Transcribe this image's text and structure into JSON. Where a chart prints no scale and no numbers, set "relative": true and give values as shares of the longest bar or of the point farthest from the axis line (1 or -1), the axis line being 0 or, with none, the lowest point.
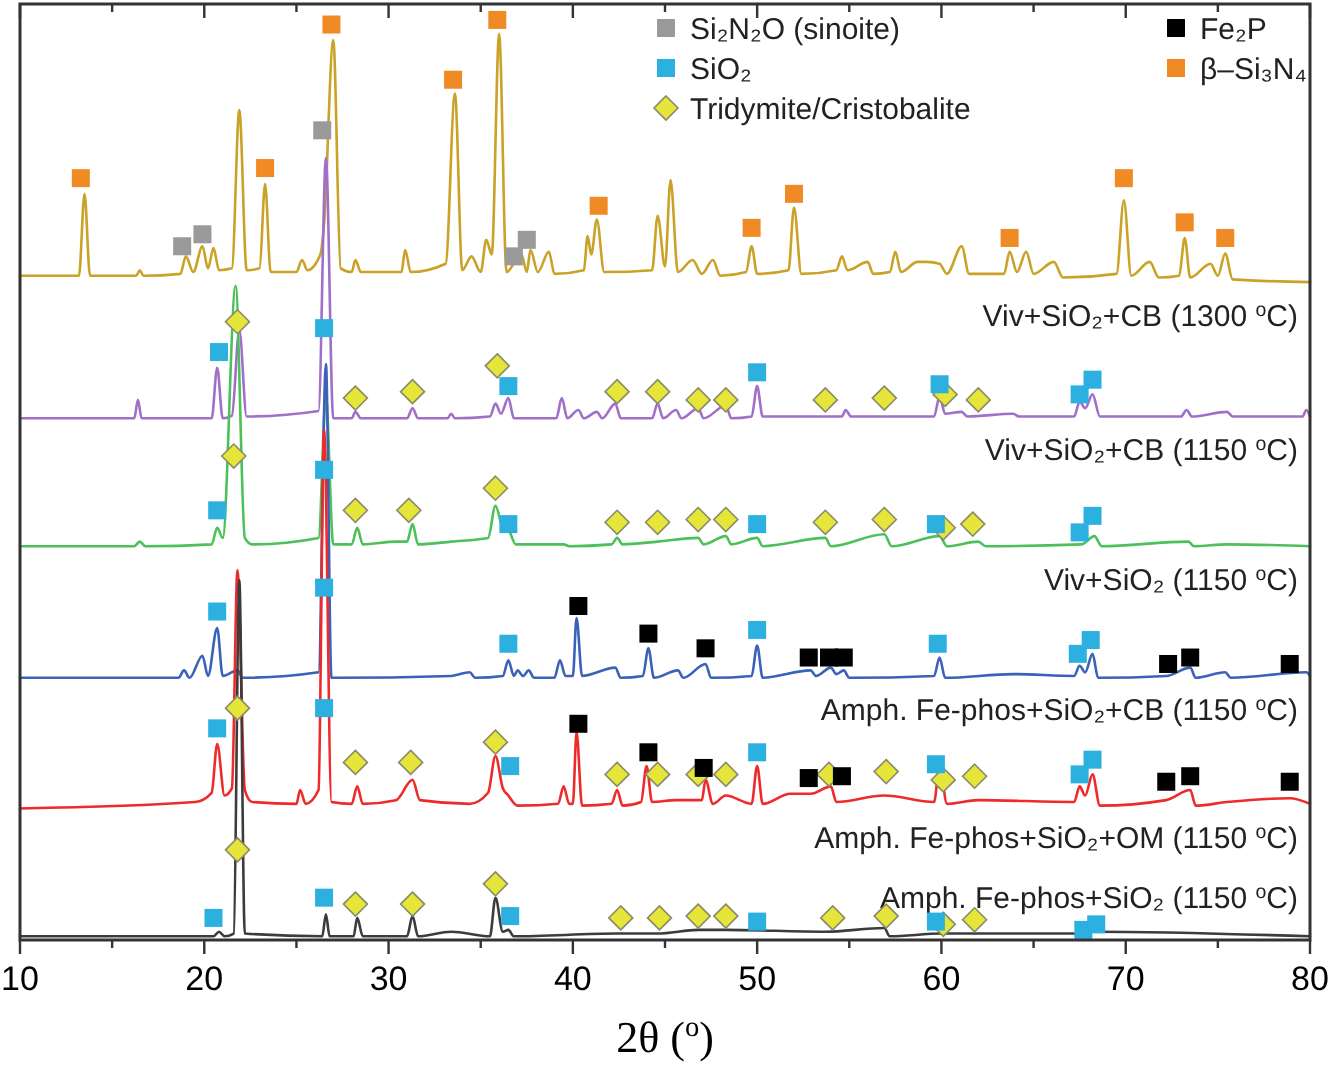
{
  "chart_data": {
    "type": "line",
    "relative": true,
    "xlabel": "2θ ($^{o}$)",
    "xlim": [
      10,
      80
    ],
    "xticks": [
      10,
      {
        "value": 15,
        "label": null
      },
      20,
      {
        "value": 25,
        "label": null
      },
      30,
      {
        "value": 35,
        "label": null
      },
      40,
      {
        "value": 45,
        "label": null
      },
      50,
      {
        "value": 55,
        "label": null
      },
      60,
      {
        "value": 65,
        "label": null
      },
      70,
      {
        "value": 75,
        "label": null
      },
      80
    ],
    "legend": "top right",
    "series": [
      {
        "name": "Viv+SiO₂+CB (1300 $^{o}$C)",
        "color": "#c9a227",
        "x": [
          10,
          13.2,
          13.5,
          13.8,
          16.3,
          16.5,
          16.7,
          18.7,
          19.0,
          19.4,
          19.9,
          20.2,
          20.5,
          20.8,
          21.5,
          21.9,
          22.3,
          23.0,
          23.3,
          23.6,
          25.0,
          25.3,
          25.6,
          26.3,
          26.5,
          27.0,
          27.4,
          28.0,
          28.2,
          28.5,
          30.7,
          30.9,
          31.2,
          33.1,
          33.6,
          34.0,
          34.5,
          35.0,
          35.3,
          35.6,
          36.0,
          36.4,
          37.2,
          37.5,
          37.7,
          38.1,
          38.7,
          39.0,
          40.6,
          40.8,
          41.0,
          41.3,
          41.7,
          44.3,
          44.6,
          45.0,
          45.3,
          45.7,
          46.5,
          47.0,
          47.6,
          48.0,
          49.4,
          49.7,
          50.0,
          51.7,
          52.0,
          52.4,
          54.3,
          54.6,
          54.9,
          56.0,
          56.3,
          57.2,
          57.5,
          57.8,
          58.7,
          59.2,
          59.9,
          60.3,
          61.1,
          61.5,
          63.4,
          63.7,
          64.1,
          64.6,
          65.0,
          66.1,
          66.6,
          69.5,
          69.9,
          70.3,
          71.3,
          71.8,
          72.9,
          73.2,
          73.5,
          74.6,
          75.0,
          75.4,
          75.8,
          80
        ],
        "values": [
          0.722,
          0.722,
          0.811,
          0.722,
          0.722,
          0.728,
          0.722,
          0.724,
          0.743,
          0.726,
          0.754,
          0.73,
          0.752,
          0.728,
          0.73,
          0.902,
          0.728,
          0.73,
          0.822,
          0.726,
          0.726,
          0.739,
          0.728,
          0.745,
          0.778,
          0.978,
          0.73,
          0.726,
          0.739,
          0.726,
          0.726,
          0.75,
          0.726,
          0.735,
          0.92,
          0.728,
          0.743,
          0.726,
          0.761,
          0.745,
          0.985,
          0.726,
          0.746,
          0.726,
          0.75,
          0.726,
          0.748,
          0.724,
          0.728,
          0.765,
          0.745,
          0.783,
          0.726,
          0.728,
          0.787,
          0.732,
          0.826,
          0.726,
          0.739,
          0.724,
          0.739,
          0.722,
          0.726,
          0.754,
          0.724,
          0.728,
          0.796,
          0.724,
          0.728,
          0.743,
          0.728,
          0.737,
          0.724,
          0.726,
          0.748,
          0.726,
          0.737,
          0.737,
          0.735,
          0.724,
          0.754,
          0.724,
          0.724,
          0.748,
          0.726,
          0.748,
          0.724,
          0.737,
          0.72,
          0.724,
          0.804,
          0.722,
          0.737,
          0.72,
          0.722,
          0.763,
          0.72,
          0.735,
          0.722,
          0.746,
          0.718,
          0.715
        ]
      },
      {
        "name": "Viv+SiO₂+CB (1150 $^{o}$C)",
        "color": "#a070c8",
        "x": [
          10,
          16.2,
          16.4,
          16.6,
          20.4,
          20.7,
          21.0,
          21.5,
          21.9,
          22.3,
          26.2,
          26.6,
          27.0,
          28.0,
          28.2,
          28.5,
          31.0,
          31.3,
          31.6,
          33.2,
          33.4,
          33.6,
          35.5,
          35.8,
          36.1,
          36.5,
          36.8,
          39.1,
          39.4,
          39.7,
          40.3,
          40.6,
          41.3,
          41.6,
          42.3,
          42.6,
          44.3,
          44.6,
          44.9,
          45.6,
          45.9,
          46.8,
          47.1,
          48.3,
          48.6,
          49.7,
          50.0,
          50.3,
          54.6,
          54.8,
          55.1,
          59.6,
          59.9,
          60.2,
          61.1,
          61.4,
          63.9,
          64.2,
          67.2,
          67.5,
          67.8,
          68.2,
          68.6,
          73.0,
          73.3,
          73.6,
          75.5,
          75.8,
          79.6,
          79.8,
          80
        ],
        "values": [
          0.567,
          0.567,
          0.587,
          0.567,
          0.567,
          0.622,
          0.567,
          0.57,
          0.663,
          0.569,
          0.575,
          0.85,
          0.567,
          0.567,
          0.574,
          0.567,
          0.567,
          0.578,
          0.567,
          0.567,
          0.572,
          0.567,
          0.569,
          0.583,
          0.572,
          0.589,
          0.567,
          0.567,
          0.589,
          0.567,
          0.576,
          0.567,
          0.574,
          0.567,
          0.583,
          0.567,
          0.567,
          0.583,
          0.567,
          0.576,
          0.567,
          0.578,
          0.567,
          0.581,
          0.567,
          0.569,
          0.602,
          0.569,
          0.569,
          0.576,
          0.569,
          0.569,
          0.591,
          0.572,
          0.574,
          0.569,
          0.572,
          0.569,
          0.569,
          0.585,
          0.578,
          0.593,
          0.569,
          0.569,
          0.576,
          0.569,
          0.574,
          0.569,
          0.569,
          0.576,
          0.569
        ]
      },
      {
        "name": "Viv+SiO₂ (1150 $^{o}$C)",
        "color": "#4cc05a",
        "x": [
          10,
          16.2,
          16.5,
          16.8,
          20.4,
          20.7,
          21.0,
          21.7,
          22.2,
          22.6,
          26.2,
          26.6,
          27.0,
          28.0,
          28.3,
          28.6,
          30.4,
          31.0,
          31.3,
          31.6,
          33.4,
          35.4,
          35.8,
          36.2,
          36.5,
          36.9,
          39.5,
          39.8,
          42.1,
          42.4,
          42.7,
          44.6,
          46.8,
          47.1,
          48.3,
          48.6,
          50.0,
          50.3,
          53.7,
          54.0,
          56.9,
          57.3,
          59.9,
          60.3,
          62.0,
          62.4,
          67.6,
          68.3,
          68.7,
          73.4,
          73.7,
          75.5,
          80
        ],
        "values": [
          0.428,
          0.428,
          0.433,
          0.428,
          0.43,
          0.448,
          0.437,
          0.711,
          0.437,
          0.43,
          0.437,
          0.591,
          0.43,
          0.43,
          0.448,
          0.43,
          0.433,
          0.433,
          0.452,
          0.43,
          0.433,
          0.437,
          0.472,
          0.448,
          0.446,
          0.43,
          0.43,
          0.428,
          0.43,
          0.437,
          0.43,
          0.433,
          0.437,
          0.43,
          0.439,
          0.43,
          0.437,
          0.428,
          0.437,
          0.428,
          0.441,
          0.428,
          0.439,
          0.428,
          0.433,
          0.428,
          0.43,
          0.439,
          0.428,
          0.433,
          0.428,
          0.43,
          0.428
        ]
      },
      {
        "name": "Amph. Fe-phos+SiO₂+CB (1150 $^{o}$C)",
        "color": "#3a62b8",
        "x": [
          10,
          18.6,
          18.9,
          19.2,
          19.9,
          20.2,
          20.7,
          21.0,
          21.8,
          22.1,
          26.2,
          26.6,
          26.9,
          33.4,
          34.4,
          34.7,
          36.2,
          36.5,
          36.8,
          37.0,
          37.3,
          37.6,
          37.9,
          39.0,
          39.3,
          39.6,
          40.0,
          40.2,
          40.5,
          42.3,
          42.6,
          43.8,
          44.1,
          44.4,
          45.7,
          46.0,
          47.2,
          47.5,
          49.7,
          50.0,
          50.3,
          52.9,
          53.2,
          54.0,
          54.3,
          54.7,
          55.0,
          59.6,
          59.9,
          60.2,
          63.9,
          67.2,
          67.5,
          67.8,
          68.2,
          68.5,
          72.2,
          73.5,
          73.8,
          75.4,
          75.7,
          79.8,
          80
        ],
        "values": [
          0.285,
          0.285,
          0.293,
          0.285,
          0.309,
          0.287,
          0.339,
          0.287,
          0.293,
          0.285,
          0.291,
          0.626,
          0.285,
          0.287,
          0.291,
          0.285,
          0.287,
          0.304,
          0.287,
          0.293,
          0.287,
          0.293,
          0.285,
          0.285,
          0.304,
          0.287,
          0.287,
          0.35,
          0.287,
          0.296,
          0.285,
          0.287,
          0.317,
          0.285,
          0.293,
          0.285,
          0.3,
          0.285,
          0.287,
          0.32,
          0.285,
          0.293,
          0.287,
          0.296,
          0.289,
          0.293,
          0.285,
          0.287,
          0.307,
          0.285,
          0.289,
          0.287,
          0.298,
          0.291,
          0.311,
          0.285,
          0.287,
          0.296,
          0.285,
          0.291,
          0.285,
          0.291,
          0.287
        ]
      },
      {
        "name": "Amph. Fe-phos+SiO₂+OM (1150 $^{o}$C)",
        "color": "#ee2a2a",
        "x": [
          10,
          19.5,
          20.4,
          20.7,
          21.1,
          21.5,
          21.8,
          22.2,
          22.6,
          25.0,
          25.2,
          25.5,
          26.2,
          26.5,
          26.9,
          28.0,
          28.3,
          28.6,
          30.4,
          31.3,
          31.7,
          34.4,
          35.4,
          35.8,
          36.2,
          36.5,
          37.0,
          39.2,
          39.5,
          39.8,
          40.0,
          40.2,
          40.5,
          42.1,
          42.4,
          42.7,
          43.7,
          44.0,
          44.3,
          45.6,
          47.0,
          47.2,
          47.6,
          48.3,
          49.7,
          50.0,
          50.3,
          51.8,
          52.9,
          54.0,
          54.3,
          56.9,
          59.6,
          59.9,
          60.3,
          62.0,
          67.2,
          67.5,
          67.8,
          68.2,
          68.6,
          72.2,
          73.5,
          73.8,
          75.5,
          78.9,
          80
        ],
        "values": [
          0.143,
          0.15,
          0.16,
          0.213,
          0.157,
          0.165,
          0.402,
          0.163,
          0.15,
          0.148,
          0.163,
          0.148,
          0.163,
          0.554,
          0.15,
          0.148,
          0.167,
          0.148,
          0.152,
          0.174,
          0.152,
          0.148,
          0.16,
          0.2,
          0.165,
          0.157,
          0.146,
          0.148,
          0.167,
          0.148,
          0.148,
          0.226,
          0.146,
          0.148,
          0.163,
          0.146,
          0.15,
          0.189,
          0.15,
          0.152,
          0.152,
          0.174,
          0.148,
          0.157,
          0.148,
          0.189,
          0.148,
          0.159,
          0.159,
          0.167,
          0.15,
          0.157,
          0.15,
          0.191,
          0.148,
          0.152,
          0.15,
          0.167,
          0.157,
          0.18,
          0.146,
          0.152,
          0.163,
          0.146,
          0.15,
          0.154,
          0.148
        ]
      },
      {
        "name": "Amph. Fe-phos+SiO₂ (1150 $^{o}$C)",
        "color": "#3c3c3c",
        "x": [
          10,
          20.5,
          20.8,
          21.1,
          21.6,
          21.9,
          22.2,
          26.4,
          26.6,
          26.8,
          28.1,
          28.3,
          28.6,
          31.0,
          31.3,
          31.6,
          33.4,
          35.5,
          35.8,
          36.2,
          36.5,
          36.8,
          42.4,
          44.6,
          46.8,
          48.3,
          53.7,
          56.9,
          57.2,
          60.0,
          61.8,
          67.6,
          68.2,
          80
        ],
        "values": [
          0.004,
          0.004,
          0.009,
          0.004,
          0.007,
          0.391,
          0.007,
          0.004,
          0.028,
          0.004,
          0.004,
          0.024,
          0.004,
          0.004,
          0.026,
          0.004,
          0.009,
          0.004,
          0.046,
          0.009,
          0.011,
          0.004,
          0.007,
          0.007,
          0.011,
          0.011,
          0.009,
          0.013,
          0.004,
          0.007,
          0.007,
          0.007,
          0.009,
          0.004
        ]
      },
      {
        "type": "scatter",
        "marker": "square",
        "name": "Si₂N₂O (sinoite)",
        "color": "#9a9a9a",
        "x": [
          18.8,
          19.9,
          26.4,
          36.8,
          37.5
        ],
        "values": [
          0.754,
          0.767,
          0.88,
          0.743,
          0.761
        ]
      },
      {
        "type": "scatter",
        "marker": "square",
        "name": "Fe₂P",
        "color": "#000000",
        "x": [
          40.3,
          44.1,
          47.2,
          52.8,
          53.9,
          54.7,
          72.3,
          73.5,
          78.9,
          40.3,
          44.1,
          47.1,
          52.8,
          54.6,
          72.2,
          73.5,
          78.9
        ],
        "values": [
          0.363,
          0.333,
          0.317,
          0.307,
          0.307,
          0.307,
          0.3,
          0.307,
          0.3,
          0.235,
          0.204,
          0.187,
          0.176,
          0.178,
          0.172,
          0.178,
          0.172
        ]
      },
      {
        "type": "scatter",
        "marker": "square",
        "name": "SiO₂",
        "color": "#2bb0e0",
        "x": [
          20.8,
          26.5,
          36.5,
          50.0,
          59.9,
          67.5,
          68.2,
          20.7,
          26.5,
          36.5,
          50.0,
          59.7,
          67.5,
          68.2,
          20.7,
          26.5,
          36.5,
          50.0,
          59.8,
          67.4,
          68.1,
          20.7,
          26.5,
          36.6,
          50.0,
          59.7,
          67.5,
          68.2,
          20.5,
          26.5,
          36.6,
          50.0,
          59.7,
          67.7,
          68.4
        ],
        "values": [
          0.639,
          0.665,
          0.602,
          0.617,
          0.604,
          0.593,
          0.609,
          0.467,
          0.511,
          0.452,
          0.452,
          0.452,
          0.443,
          0.461,
          0.357,
          0.383,
          0.322,
          0.337,
          0.322,
          0.311,
          0.326,
          0.23,
          0.252,
          0.189,
          0.204,
          0.191,
          0.18,
          0.196,
          0.024,
          0.046,
          0.026,
          0.02,
          0.02,
          0.011,
          0.017
        ]
      },
      {
        "type": "scatter",
        "marker": "square",
        "name": "β–Si₃N₄",
        "color": "#f08a24",
        "x": [
          13.3,
          23.3,
          26.9,
          33.5,
          35.9,
          41.4,
          49.7,
          52.0,
          63.7,
          69.9,
          73.2,
          75.4
        ],
        "values": [
          0.828,
          0.839,
          0.995,
          0.935,
          1.0,
          0.798,
          0.774,
          0.811,
          0.763,
          0.828,
          0.78,
          0.763
        ]
      },
      {
        "type": "scatter",
        "marker": "diamond",
        "name": "Tridymite/Cristobalite",
        "color": "#e6e63a",
        "x": [
          21.8,
          28.2,
          31.3,
          35.9,
          42.4,
          44.6,
          46.8,
          48.3,
          53.7,
          56.9,
          60.2,
          62.0,
          21.6,
          28.2,
          31.1,
          35.8,
          42.4,
          44.6,
          46.8,
          48.3,
          53.7,
          56.9,
          60.1,
          61.7,
          21.8,
          28.2,
          31.2,
          35.8,
          42.4,
          44.6,
          46.8,
          48.3,
          53.9,
          57.0,
          60.1,
          61.8,
          21.8,
          28.2,
          31.3,
          35.8,
          42.6,
          44.7,
          46.8,
          48.3,
          54.1,
          57.0,
          60.1,
          61.8
        ],
        "values": [
          0.672,
          0.589,
          0.596,
          0.624,
          0.596,
          0.596,
          0.587,
          0.587,
          0.587,
          0.589,
          0.593,
          0.587,
          0.526,
          0.467,
          0.467,
          0.491,
          0.454,
          0.454,
          0.457,
          0.457,
          0.454,
          0.457,
          0.448,
          0.452,
          0.252,
          0.193,
          0.193,
          0.215,
          0.18,
          0.18,
          0.18,
          0.18,
          0.18,
          0.183,
          0.174,
          0.178,
          0.098,
          0.039,
          0.039,
          0.061,
          0.024,
          0.024,
          0.026,
          0.026,
          0.024,
          0.026,
          0.017,
          0.022
        ]
      }
    ]
  }
}
